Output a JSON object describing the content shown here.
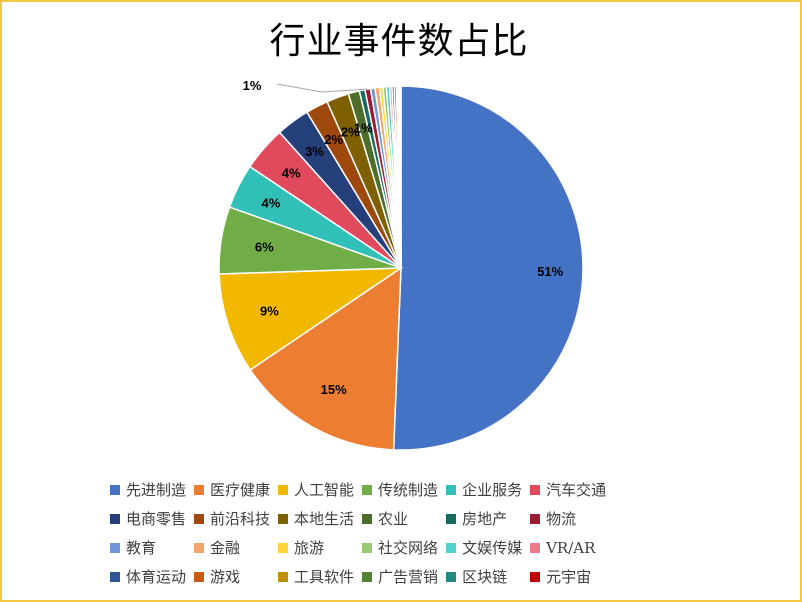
{
  "chart_data": {
    "type": "pie",
    "title": "行业事件数占比",
    "legend_position": "bottom",
    "categories": [
      "先进制造",
      "医疗健康",
      "人工智能",
      "传统制造",
      "企业服务",
      "汽车交通",
      "电商零售",
      "前沿科技",
      "本地生活",
      "农业",
      "房地产",
      "物流",
      "教育",
      "金融",
      "旅游",
      "社交网络",
      "文娱传媒",
      "VR/AR",
      "体育运动",
      "游戏",
      "工具软件",
      "广告营销",
      "区块链",
      "元宇宙"
    ],
    "values": [
      51,
      15,
      9,
      6,
      4,
      4,
      3,
      2,
      2,
      1,
      0.5,
      0.5,
      0.4,
      0.4,
      0.3,
      0.3,
      0.3,
      0.2,
      0.2,
      0.2,
      0.1,
      0.1,
      0.1,
      0.1
    ],
    "colors": [
      "#4472c4",
      "#ed7d31",
      "#f2b800",
      "#70ad47",
      "#30c0b8",
      "#e04a5c",
      "#243f7a",
      "#9e480e",
      "#7f6000",
      "#4d6e2a",
      "#156b5e",
      "#9b1b30",
      "#6f95d6",
      "#f4a46c",
      "#ffd33a",
      "#98c86f",
      "#4fd2cc",
      "#e97a86",
      "#2f5597",
      "#c55a11",
      "#bf9000",
      "#548235",
      "#1f8a7e",
      "#c00000"
    ],
    "data_labels": [
      "51%",
      "15%",
      "9%",
      "6%",
      "4%",
      "4%",
      "3%",
      "2%",
      "2%",
      "1%",
      "",
      "",
      "",
      "",
      "",
      "",
      "",
      "",
      "",
      "",
      "",
      "",
      "",
      ""
    ],
    "callout_label": "1%"
  }
}
